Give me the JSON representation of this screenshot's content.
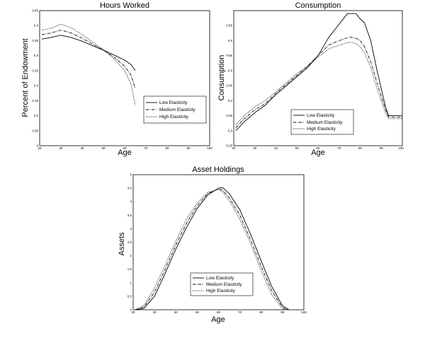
{
  "chart_data": [
    {
      "id": "hours",
      "type": "line",
      "title": "Hours Worked",
      "xlabel": "Age",
      "ylabel": "Percent of Endowment",
      "xlim": [
        20,
        100
      ],
      "ylim": [
        0,
        0.45
      ],
      "xticks": [
        "20",
        "30",
        "40",
        "50",
        "60",
        "70",
        "80",
        "90",
        "100"
      ],
      "yticks": [
        "0",
        "0.05",
        "0.1",
        "0.15",
        "0.2",
        "0.25",
        "0.3",
        "0.35",
        "0.4",
        "0.45"
      ],
      "legend": "bottom-right",
      "grid": false,
      "series": [
        {
          "name": "Low Elasticity",
          "style": "solid",
          "x": [
            21,
            25,
            30,
            35,
            40,
            45,
            50,
            55,
            60,
            63,
            65
          ],
          "y": [
            0.355,
            0.36,
            0.368,
            0.36,
            0.348,
            0.333,
            0.318,
            0.302,
            0.285,
            0.27,
            0.25
          ]
        },
        {
          "name": "Medium Elasticity",
          "style": "dashdot",
          "x": [
            21,
            25,
            30,
            35,
            40,
            45,
            50,
            55,
            60,
            63,
            65
          ],
          "y": [
            0.37,
            0.375,
            0.385,
            0.375,
            0.358,
            0.338,
            0.318,
            0.295,
            0.265,
            0.235,
            0.19
          ]
        },
        {
          "name": "High Elasticity",
          "style": "dotted",
          "x": [
            21,
            25,
            30,
            35,
            40,
            45,
            50,
            55,
            60,
            63,
            65
          ],
          "y": [
            0.385,
            0.39,
            0.405,
            0.392,
            0.37,
            0.345,
            0.32,
            0.29,
            0.25,
            0.205,
            0.135
          ]
        }
      ]
    },
    {
      "id": "consumption",
      "type": "line",
      "title": "Consumption",
      "xlabel": "Age",
      "ylabel": "Consumption",
      "xlim": [
        20,
        100
      ],
      "ylim": [
        0.25,
        0.7
      ],
      "xticks": [
        "20",
        "30",
        "40",
        "50",
        "60",
        "70",
        "80",
        "90",
        "100"
      ],
      "yticks": [
        "0.25",
        "0.3",
        "0.35",
        "0.4",
        "0.45",
        "0.5",
        "0.55",
        "0.6",
        "0.65"
      ],
      "legend": "bottom-right",
      "grid": false,
      "series": [
        {
          "name": "Low Elasticity",
          "style": "solid",
          "x": [
            21,
            25,
            30,
            35,
            40,
            45,
            50,
            55,
            60,
            65,
            70,
            74,
            78,
            80,
            82,
            85,
            88,
            92,
            93.5,
            96,
            100
          ],
          "y": [
            0.3,
            0.33,
            0.36,
            0.385,
            0.42,
            0.45,
            0.48,
            0.51,
            0.55,
            0.61,
            0.655,
            0.69,
            0.69,
            0.672,
            0.66,
            0.6,
            0.5,
            0.38,
            0.35,
            0.35,
            0.35
          ]
        },
        {
          "name": "Medium Elasticity",
          "style": "dashdot",
          "x": [
            21,
            25,
            30,
            35,
            40,
            45,
            50,
            55,
            60,
            65,
            70,
            75,
            78,
            80,
            82,
            85,
            88,
            92,
            93.5,
            96,
            100
          ],
          "y": [
            0.31,
            0.34,
            0.37,
            0.39,
            0.425,
            0.455,
            0.485,
            0.515,
            0.55,
            0.585,
            0.6,
            0.612,
            0.608,
            0.6,
            0.58,
            0.53,
            0.46,
            0.37,
            0.345,
            0.345,
            0.345
          ]
        },
        {
          "name": "High Elasticity",
          "style": "dotted",
          "x": [
            21,
            25,
            30,
            35,
            40,
            45,
            50,
            55,
            60,
            65,
            70,
            75,
            78,
            80,
            82,
            85,
            88,
            92,
            93.5,
            96,
            100
          ],
          "y": [
            0.32,
            0.35,
            0.38,
            0.4,
            0.43,
            0.46,
            0.49,
            0.515,
            0.545,
            0.572,
            0.585,
            0.595,
            0.59,
            0.58,
            0.56,
            0.51,
            0.44,
            0.36,
            0.34,
            0.34,
            0.34
          ]
        }
      ]
    },
    {
      "id": "assets",
      "type": "line",
      "title": "Asset Holdings",
      "xlabel": "Age",
      "ylabel": "Assets",
      "xlim": [
        20,
        100
      ],
      "ylim": [
        0,
        5
      ],
      "xticks": [
        "20",
        "30",
        "40",
        "50",
        "60",
        "70",
        "80",
        "90",
        "100"
      ],
      "yticks": [
        "0",
        "0.5",
        "1",
        "1.5",
        "2",
        "2.5",
        "3",
        "3.5",
        "4",
        "4.5",
        "5"
      ],
      "legend": "bottom-center",
      "grid": false,
      "series": [
        {
          "name": "Low Elasticity",
          "style": "solid",
          "x": [
            21,
            25,
            30,
            35,
            40,
            45,
            50,
            55,
            60,
            62,
            65,
            70,
            75,
            80,
            85,
            90,
            93
          ],
          "y": [
            0,
            0.05,
            0.5,
            1.35,
            2.25,
            3.05,
            3.75,
            4.25,
            4.5,
            4.52,
            4.3,
            3.7,
            2.8,
            1.8,
            0.85,
            0.15,
            0
          ]
        },
        {
          "name": "Medium Elasticity",
          "style": "dashdot",
          "x": [
            21,
            25,
            30,
            35,
            40,
            45,
            50,
            55,
            60,
            62,
            65,
            70,
            75,
            80,
            85,
            90,
            93
          ],
          "y": [
            0,
            0.1,
            0.65,
            1.5,
            2.4,
            3.2,
            3.85,
            4.3,
            4.48,
            4.42,
            4.15,
            3.5,
            2.6,
            1.6,
            0.7,
            0.08,
            0
          ]
        },
        {
          "name": "High Elasticity",
          "style": "dotted",
          "x": [
            21,
            25,
            30,
            35,
            40,
            45,
            50,
            55,
            60,
            62,
            65,
            70,
            75,
            80,
            85,
            90,
            93
          ],
          "y": [
            0,
            0.15,
            0.8,
            1.65,
            2.55,
            3.35,
            3.95,
            4.35,
            4.45,
            4.35,
            4.05,
            3.35,
            2.45,
            1.45,
            0.55,
            0.03,
            0
          ]
        }
      ]
    }
  ]
}
